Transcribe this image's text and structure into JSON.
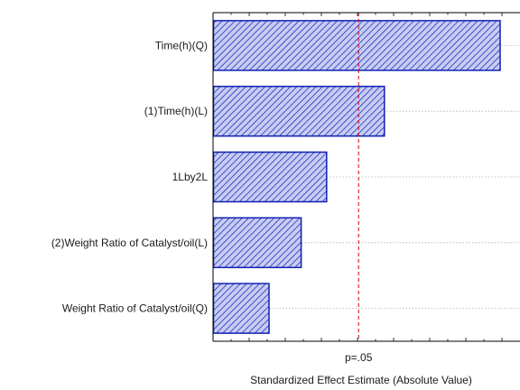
{
  "chart_data": {
    "type": "bar",
    "orientation": "horizontal",
    "categories": [
      "Time(h)(Q)",
      "(1)Time(h)(L)",
      "1Lby2L",
      "(2)Weight Ratio of Catalyst/oil(L)",
      "Weight Ratio of Catalyst/oil(Q)"
    ],
    "values": [
      15.9,
      9.49,
      6.29,
      4.88,
      3.1
    ],
    "xlim": [
      0,
      17
    ],
    "xlabel": "Standardized Effect Estimate (Absolute Value)",
    "reference_line": {
      "value": 8.06,
      "label": "p=.05",
      "color": "#cc0000",
      "style": "dashed"
    },
    "grid": {
      "horizontal": true,
      "vertical": false
    },
    "colors": {
      "bar_fill": "#c8ccf0",
      "bar_hatch": "#2030c8",
      "bar_edge": "#1020b0",
      "axis": "#000000"
    }
  }
}
